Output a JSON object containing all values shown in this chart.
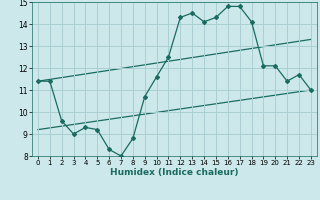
{
  "title": "",
  "xlabel": "Humidex (Indice chaleur)",
  "xlim": [
    -0.5,
    23.5
  ],
  "ylim": [
    8,
    15
  ],
  "yticks": [
    8,
    9,
    10,
    11,
    12,
    13,
    14,
    15
  ],
  "xticks": [
    0,
    1,
    2,
    3,
    4,
    5,
    6,
    7,
    8,
    9,
    10,
    11,
    12,
    13,
    14,
    15,
    16,
    17,
    18,
    19,
    20,
    21,
    22,
    23
  ],
  "bg_color": "#cce8ea",
  "grid_color": "#aacfd2",
  "line_color": "#1a6b62",
  "line1_x": [
    0,
    1,
    2,
    3,
    4,
    5,
    6,
    7,
    8,
    9,
    10,
    11,
    12,
    13,
    14,
    15,
    16,
    17,
    18,
    19,
    20,
    21,
    22,
    23
  ],
  "line1_y": [
    11.4,
    11.4,
    9.6,
    9.0,
    9.3,
    9.2,
    8.3,
    8.0,
    8.8,
    10.7,
    11.6,
    12.5,
    14.3,
    14.5,
    14.1,
    14.3,
    14.8,
    14.8,
    14.1,
    12.1,
    12.1,
    11.4,
    11.7,
    11.0
  ],
  "line2_x": [
    0,
    23
  ],
  "line2_y": [
    11.4,
    13.3
  ],
  "line3_x": [
    0,
    23
  ],
  "line3_y": [
    9.2,
    11.0
  ],
  "figsize": [
    3.2,
    2.0
  ],
  "dpi": 100
}
